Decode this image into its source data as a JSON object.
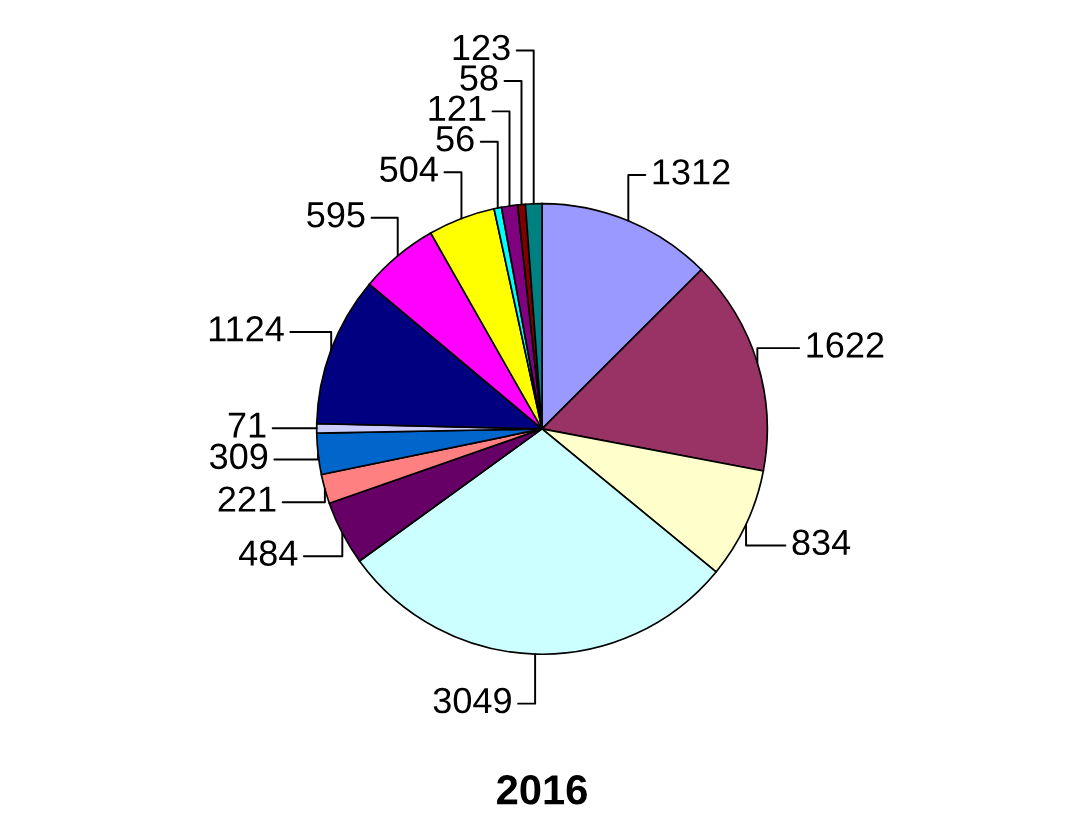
{
  "chart_data": {
    "type": "pie",
    "title": "2016",
    "categories": [
      null,
      null,
      null,
      null,
      null,
      null,
      null,
      null,
      null,
      null,
      null,
      null,
      null,
      null,
      null
    ],
    "values": [
      1312,
      1622,
      834,
      3049,
      484,
      221,
      309,
      71,
      1124,
      595,
      504,
      56,
      121,
      58,
      123
    ],
    "colors": [
      "#9999ff",
      "#993366",
      "#ffffcc",
      "#ccffff",
      "#660066",
      "#ff8080",
      "#0066cc",
      "#ccccff",
      "#000080",
      "#ff00ff",
      "#ffff00",
      "#00ffff",
      "#800080",
      "#800000",
      "#008080"
    ],
    "data_labels": true
  }
}
